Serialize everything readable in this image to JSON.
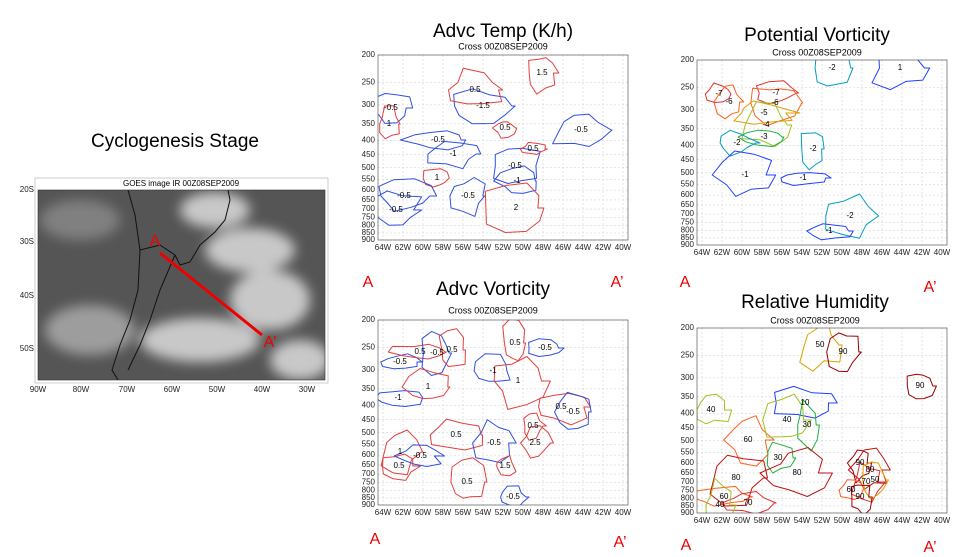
{
  "slide": {
    "title": "Cyclogenesis Stage"
  },
  "satellite": {
    "title": "GOES image IR 00Z08SEP2009",
    "yticks": [
      "20S",
      "30S",
      "40S",
      "50S"
    ],
    "xticks": [
      "90W",
      "80W",
      "70W",
      "60W",
      "50W",
      "40W",
      "30W"
    ],
    "start_label": "A",
    "end_label": "A’"
  },
  "axes": {
    "ylim": [
      200,
      900
    ],
    "log": true,
    "grid": true,
    "yticks": [
      200,
      250,
      300,
      350,
      400,
      450,
      500,
      550,
      600,
      650,
      700,
      750,
      800,
      850,
      900
    ],
    "xlim": [
      -64.5,
      -39.5
    ],
    "xticks": [
      {
        "value": -64,
        "label": "64W"
      },
      {
        "value": -62,
        "label": "62W"
      },
      {
        "value": -60,
        "label": "60W"
      },
      {
        "value": -58,
        "label": "58W"
      },
      {
        "value": -56,
        "label": "56W"
      },
      {
        "value": -54,
        "label": "54W"
      },
      {
        "value": -52,
        "label": "52W"
      },
      {
        "value": -50,
        "label": "50W"
      },
      {
        "value": -48,
        "label": "48W"
      },
      {
        "value": -46,
        "label": "46W"
      },
      {
        "value": -44,
        "label": "44W"
      },
      {
        "value": -42,
        "label": "42W"
      },
      {
        "value": -40,
        "label": "40W"
      }
    ]
  },
  "panels": [
    {
      "title": "Advc Temp (K/h)",
      "subtitle": "Cross 00Z08SEP2009",
      "start_label": "A",
      "end_label": "A’",
      "contour_labels": [
        "-0.5",
        "1",
        "-0.5",
        "-1",
        "1",
        "-0.5",
        "-0.5",
        "-0.5",
        "0.5",
        "-0.5",
        "0.5",
        "-0.5",
        "-1",
        "2",
        "-1.5",
        "0.5",
        "1.5"
      ]
    },
    {
      "title": "Advc Vorticity",
      "subtitle": "Cross 00Z08SEP2009",
      "start_label": "A",
      "end_label": "A’",
      "contour_labels": [
        "-0.5",
        "0.5",
        "-0.5",
        "0.5",
        "-1",
        "1",
        "0.5",
        "-0.5",
        "-1",
        "1",
        "0.5",
        "-0.5",
        "0.5",
        "-0.5",
        "0.5",
        "1",
        "0.5",
        "-0.5",
        "1.5",
        "2.5",
        "0.5",
        "-0.5"
      ]
    },
    {
      "title": "Potential Vorticity",
      "subtitle": "Cross 00Z08SEP2009",
      "start_label": "A",
      "end_label": "A’",
      "contour_labels": [
        "-2",
        "1",
        "-7",
        "-6",
        "-7",
        "-6",
        "-5",
        "-4",
        "-3",
        "-2",
        "-2",
        "-1",
        "-1",
        "-2",
        "-1"
      ]
    },
    {
      "title": "Relative Humidity",
      "subtitle": "Cross 00Z08SEP2009",
      "start_label": "A",
      "end_label": "A’",
      "contour_labels": [
        "50",
        "90",
        "90",
        "10",
        "30",
        "40",
        "60",
        "40",
        "30",
        "80",
        "90",
        "80",
        "70",
        "60",
        "50",
        "90",
        "60",
        "80",
        "70",
        "40"
      ]
    }
  ]
}
